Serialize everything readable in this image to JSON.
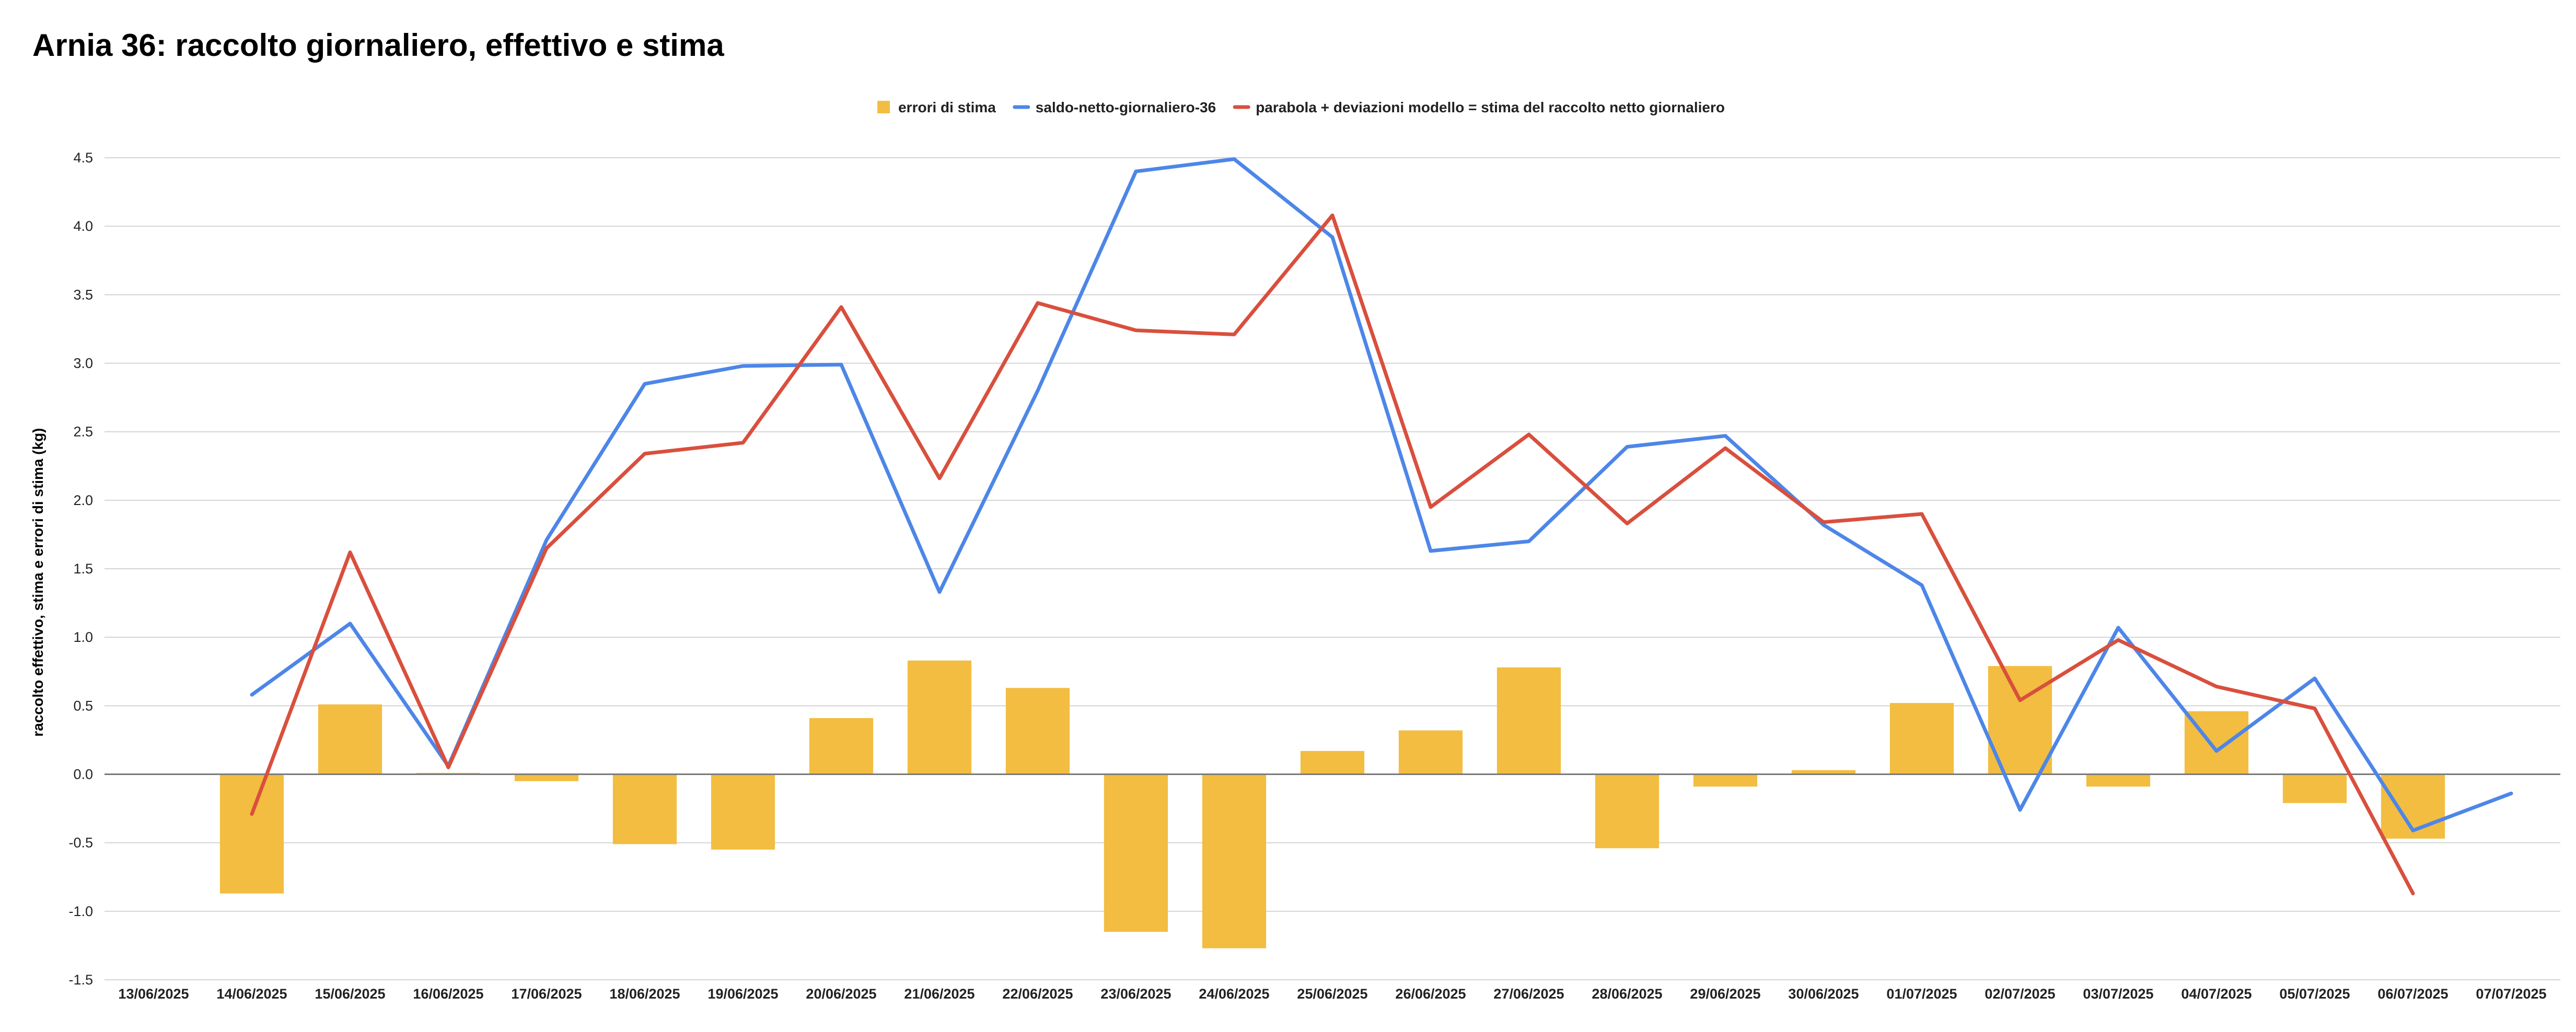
{
  "chart_data": {
    "type": "bar+line",
    "title": "Arnia 36: raccolto giornaliero, effettivo e stima",
    "ylabel": "raccolto effettivo, stima e errori di stima (kg)",
    "xlabel": "",
    "ylim": [
      -1.5,
      4.5
    ],
    "yticks": [
      -1.5,
      -1.0,
      -0.5,
      0.0,
      0.5,
      1.0,
      1.5,
      2.0,
      2.5,
      3.0,
      3.5,
      4.0,
      4.5
    ],
    "ytick_labels": [
      "-1.5",
      "-1.0",
      "-0.5",
      "0.0",
      "0.5",
      "1.0",
      "1.5",
      "2.0",
      "2.5",
      "3.0",
      "3.5",
      "4.0",
      "4.5"
    ],
    "grid": true,
    "legend_position": "top-center",
    "categories": [
      "13/06/2025",
      "14/06/2025",
      "15/06/2025",
      "16/06/2025",
      "17/06/2025",
      "18/06/2025",
      "19/06/2025",
      "20/06/2025",
      "21/06/2025",
      "22/06/2025",
      "23/06/2025",
      "24/06/2025",
      "25/06/2025",
      "26/06/2025",
      "27/06/2025",
      "28/06/2025",
      "29/06/2025",
      "30/06/2025",
      "01/07/2025",
      "02/07/2025",
      "03/07/2025",
      "04/07/2025",
      "05/07/2025",
      "06/07/2025",
      "07/07/2025"
    ],
    "series": [
      {
        "name": "errori di stima",
        "kind": "bar",
        "color": "#f2bd40",
        "values": [
          null,
          -0.87,
          0.51,
          0.01,
          -0.05,
          -0.51,
          -0.55,
          0.41,
          0.83,
          0.63,
          -1.15,
          -1.27,
          0.17,
          0.32,
          0.78,
          -0.54,
          -0.09,
          0.03,
          0.52,
          0.79,
          -0.09,
          0.46,
          -0.21,
          -0.47,
          null
        ]
      },
      {
        "name": "saldo-netto-giornaliero-36",
        "kind": "line",
        "color": "#4d86e8",
        "values": [
          null,
          0.58,
          1.1,
          0.06,
          1.71,
          2.85,
          2.98,
          2.99,
          1.33,
          2.8,
          4.4,
          4.49,
          3.92,
          1.63,
          1.7,
          2.39,
          2.47,
          1.82,
          1.38,
          -0.26,
          1.07,
          0.17,
          0.7,
          -0.41,
          -0.14
        ]
      },
      {
        "name": "parabola + deviazioni modello = stima del raccolto netto giornaliero",
        "kind": "line",
        "color": "#d94f3d",
        "values": [
          null,
          -0.29,
          1.62,
          0.05,
          1.65,
          2.34,
          2.42,
          3.41,
          2.16,
          3.44,
          3.24,
          3.21,
          4.08,
          1.95,
          2.48,
          1.83,
          2.38,
          1.84,
          1.9,
          0.54,
          0.98,
          0.64,
          0.48,
          -0.87,
          null
        ]
      }
    ]
  }
}
